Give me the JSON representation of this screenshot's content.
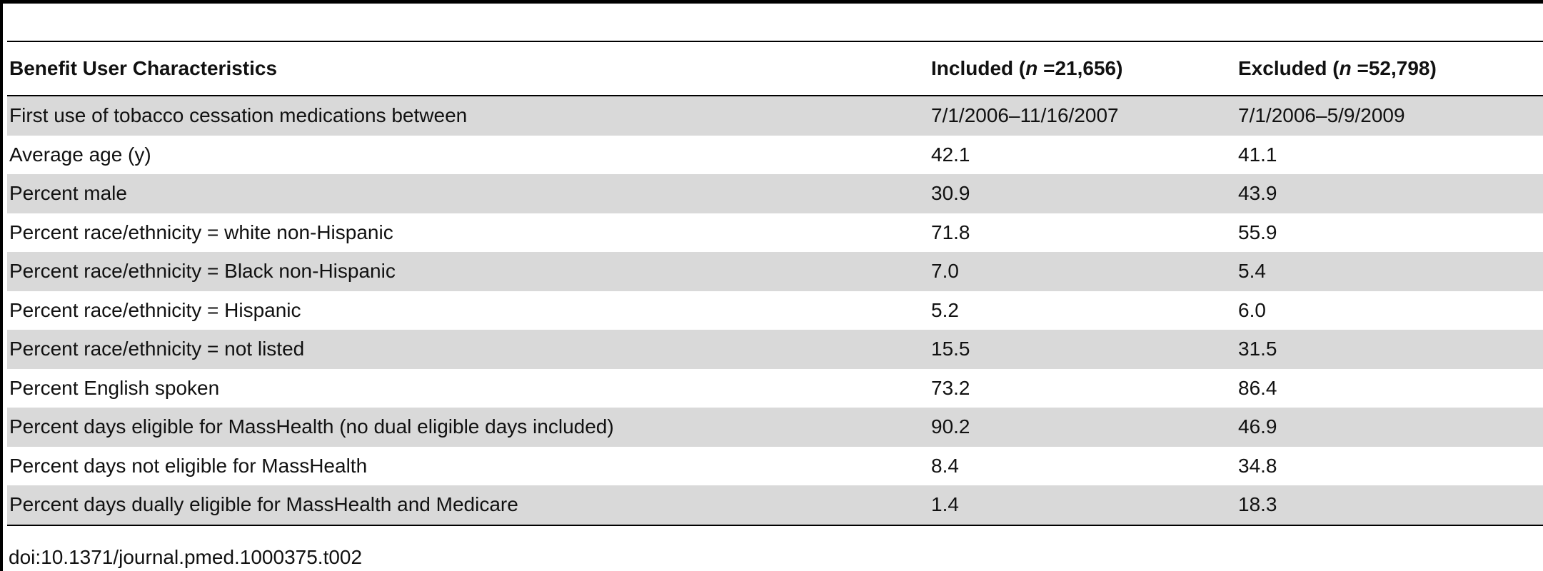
{
  "table": {
    "headers": {
      "characteristics": "Benefit User Characteristics",
      "included_prefix": "Included (",
      "included_n_symbol": "n",
      "included_n_value": " =21,656)",
      "excluded_prefix": "Excluded (",
      "excluded_n_symbol": "n",
      "excluded_n_value": " =52,798)"
    },
    "rows": [
      {
        "label": "First use of tobacco cessation medications between",
        "included": "7/1/2006–11/16/2007",
        "excluded": "7/1/2006–5/9/2009"
      },
      {
        "label": "Average age (y)",
        "included": "42.1",
        "excluded": "41.1"
      },
      {
        "label": "Percent male",
        "included": "30.9",
        "excluded": "43.9"
      },
      {
        "label": "Percent race/ethnicity = white non-Hispanic",
        "included": "71.8",
        "excluded": "55.9"
      },
      {
        "label": "Percent race/ethnicity = Black non-Hispanic",
        "included": "7.0",
        "excluded": "5.4"
      },
      {
        "label": "Percent race/ethnicity = Hispanic",
        "included": "5.2",
        "excluded": "6.0"
      },
      {
        "label": "Percent race/ethnicity = not listed",
        "included": "15.5",
        "excluded": "31.5"
      },
      {
        "label": "Percent English spoken",
        "included": "73.2",
        "excluded": "86.4"
      },
      {
        "label": "Percent days eligible for MassHealth (no dual eligible days included)",
        "included": "90.2",
        "excluded": "46.9"
      },
      {
        "label": "Percent days not eligible for MassHealth",
        "included": "8.4",
        "excluded": "34.8"
      },
      {
        "label": "Percent days dually eligible for MassHealth and Medicare",
        "included": "1.4",
        "excluded": "18.3"
      }
    ]
  },
  "footer": {
    "doi": "doi:10.1371/journal.pmed.1000375.t002"
  },
  "colors": {
    "stripe": "#d9d9d9",
    "rule": "#000000",
    "background": "#ffffff"
  }
}
